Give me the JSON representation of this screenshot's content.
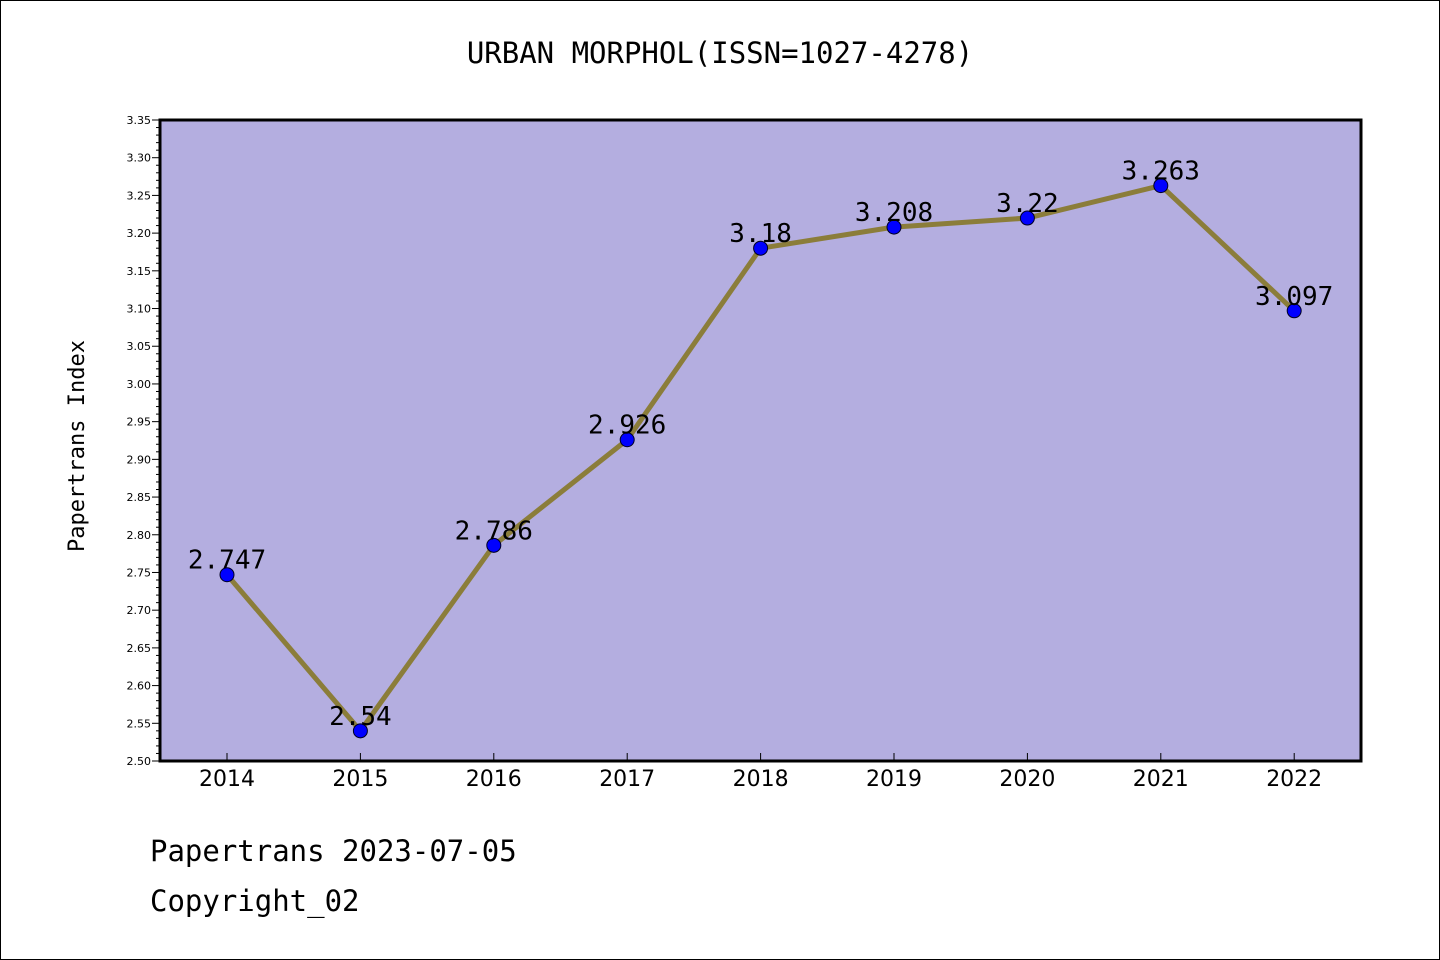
{
  "title": "URBAN MORPHOL(ISSN=1027-4278)",
  "footer": {
    "date_line": "Papertrans 2023-07-05",
    "copyright_line": "Copyright_02"
  },
  "colors": {
    "plot_background": "#b4aee0",
    "line": "#8b7d3a",
    "marker": "#0000ff"
  },
  "chart_data": {
    "type": "line",
    "title": "URBAN MORPHOL(ISSN=1027-4278)",
    "xlabel": "",
    "ylabel": "Papertrans Index",
    "categories": [
      "2014",
      "2015",
      "2016",
      "2017",
      "2018",
      "2019",
      "2020",
      "2021",
      "2022"
    ],
    "values": [
      2.747,
      2.54,
      2.786,
      2.926,
      3.18,
      3.208,
      3.22,
      3.263,
      3.097
    ],
    "data_labels": [
      "2.747",
      "2.54",
      "2.786",
      "2.926",
      "3.18",
      "3.208",
      "3.22",
      "3.263",
      "3.097"
    ],
    "ylim": [
      2.5,
      3.35
    ],
    "yticks": [
      "2.50",
      "2.55",
      "2.60",
      "2.65",
      "2.70",
      "2.75",
      "2.80",
      "2.85",
      "2.90",
      "2.95",
      "3.00",
      "3.05",
      "3.10",
      "3.15",
      "3.20",
      "3.25",
      "3.30",
      "3.35"
    ],
    "grid": false,
    "legend": "none"
  }
}
